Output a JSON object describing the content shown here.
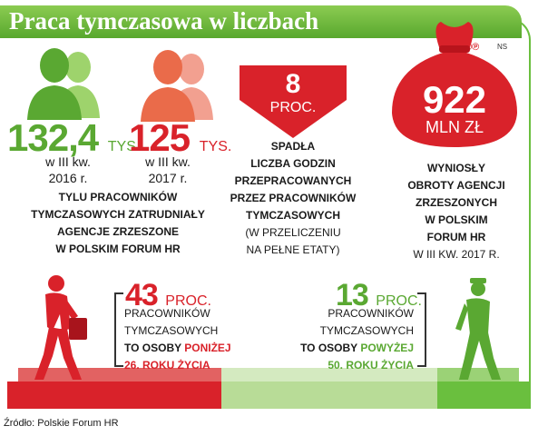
{
  "header": {
    "title": "Praca tymczasowa w liczbach"
  },
  "badges": {
    "copyright": "©℗",
    "author": "NS"
  },
  "colors": {
    "green": "#5aa832",
    "red": "#d9222a",
    "light_green": "#b8dc97"
  },
  "stat1": {
    "value": "132,4",
    "unit": "TYS.",
    "period_line1": "w III kw.",
    "period_line2": "2016 r."
  },
  "stat2": {
    "value": "125",
    "unit": "TYS.",
    "period_line1": "w III kw.",
    "period_line2": "2017 r."
  },
  "stats_caption": {
    "line1": "TYLU PRACOWNIKÓW",
    "line2": "TYMCZASOWYCH ZATRUDNIAŁY",
    "line3": "AGENCJE ZRZESZONE",
    "line4": "W POLSKIM FORUM HR"
  },
  "stat3": {
    "value": "8",
    "unit": "PROC.",
    "line1": "SPADŁA",
    "line2": "LICZBA GODZIN",
    "line3": "PRZEPRACOWANYCH",
    "line4": "PRZEZ PRACOWNIKÓW",
    "line5": "TYMCZASOWYCH",
    "line6": "(W PRZELICZENIU",
    "line7": "NA PEŁNE ETATY)"
  },
  "stat4": {
    "value": "922",
    "unit": "MLN ZŁ",
    "line1": "WYNIOSŁY",
    "line2": "OBROTY AGENCJI",
    "line3": "ZRZESZONYCH",
    "line4": "W POLSKIM",
    "line5": "FORUM HR",
    "line6": "W III KW. 2017 R."
  },
  "stat5": {
    "value": "43",
    "unit": "PROC.",
    "line1": "PRACOWNIKÓW",
    "line2": "TYMCZASOWYCH",
    "line3_prefix": "TO OSOBY ",
    "line3_highlight": "PONIŻEJ",
    "line4": "26. ROKU ŻYCIA"
  },
  "stat6": {
    "value": "13",
    "unit": "PROC.",
    "line1": "PRACOWNIKÓW",
    "line2": "TYMCZASOWYCH",
    "line3_prefix": "TO OSOBY ",
    "line3_highlight": "POWYŻEJ",
    "line4": "50. ROKU ŻYCIA"
  },
  "source": "Źródło: Polskie Forum HR"
}
